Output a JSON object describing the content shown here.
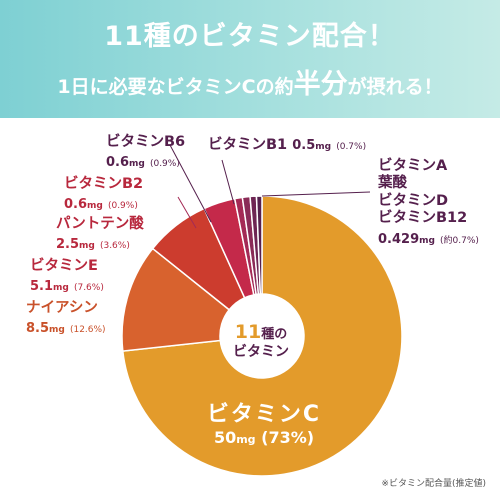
{
  "header": {
    "headline_1": "11種のビタミン配合！",
    "headline_2_pre": "1日に必要なビタミンCの約",
    "headline_2_em": "半分",
    "headline_2_post": "が摂れる！"
  },
  "labels": {
    "b6": {
      "name": "ビタミンB6",
      "value": "0.6",
      "unit": "mg",
      "pct": "(0.9%)"
    },
    "b1": {
      "name": "ビタミンB1",
      "value": "0.5",
      "unit": "mg",
      "pct": "(0.7%)"
    },
    "b2": {
      "name": "ビタミンB2",
      "value": "0.6",
      "unit": "mg",
      "pct": "(0.9%)"
    },
    "pantothenic": {
      "name": "パントテン酸",
      "value": "2.5",
      "unit": "mg",
      "pct": "(3.6%)"
    },
    "e": {
      "name": "ビタミンE",
      "value": "5.1",
      "unit": "mg",
      "pct": "(7.6%)"
    },
    "niacin": {
      "name": "ナイアシン",
      "value": "8.5",
      "unit": "mg",
      "pct": "(12.6%)"
    },
    "minor": {
      "names": [
        "ビタミンA",
        "葉酸",
        "ビタミンD",
        "ビタミンB12"
      ],
      "value": "0.429",
      "unit": "mg",
      "pct": "(約0.7%)"
    }
  },
  "center": {
    "count": "11",
    "count_suffix": "種",
    "particle": "の",
    "line2": "ビタミン"
  },
  "vitamin_c": {
    "name": "ビタミンC",
    "value": "50",
    "unit": "mg",
    "pct": "(73%)"
  },
  "footnote": "※ビタミン配合量(推定値)",
  "colors": {
    "vitamin_c": "#e39b2b",
    "niacin": "#d8622e",
    "vitamin_e": "#cc3c2e",
    "pantothenic": "#c4294a",
    "b2": "#a42a55",
    "b1_b6": "#7d2a55",
    "minor": "#55204d",
    "header": "#8fd6d6"
  },
  "chart_data": {
    "type": "pie",
    "categories": [
      "ビタミンC",
      "ナイアシン",
      "ビタミンE",
      "パントテン酸",
      "ビタミンB2",
      "ビタミンB6",
      "ビタミンB1",
      "ビタミンA・葉酸・ビタミンD・ビタミンB12"
    ],
    "values": [
      50,
      8.5,
      5.1,
      2.5,
      0.6,
      0.6,
      0.5,
      0.429
    ],
    "units": "mg",
    "percentages": [
      73,
      12.6,
      7.6,
      3.6,
      0.9,
      0.9,
      0.7,
      0.7
    ],
    "colors": [
      "#e39b2b",
      "#d8622e",
      "#cc3c2e",
      "#c4294a",
      "#a42a55",
      "#8a2b57",
      "#6e2553",
      "#55204d"
    ],
    "style": "donut"
  }
}
